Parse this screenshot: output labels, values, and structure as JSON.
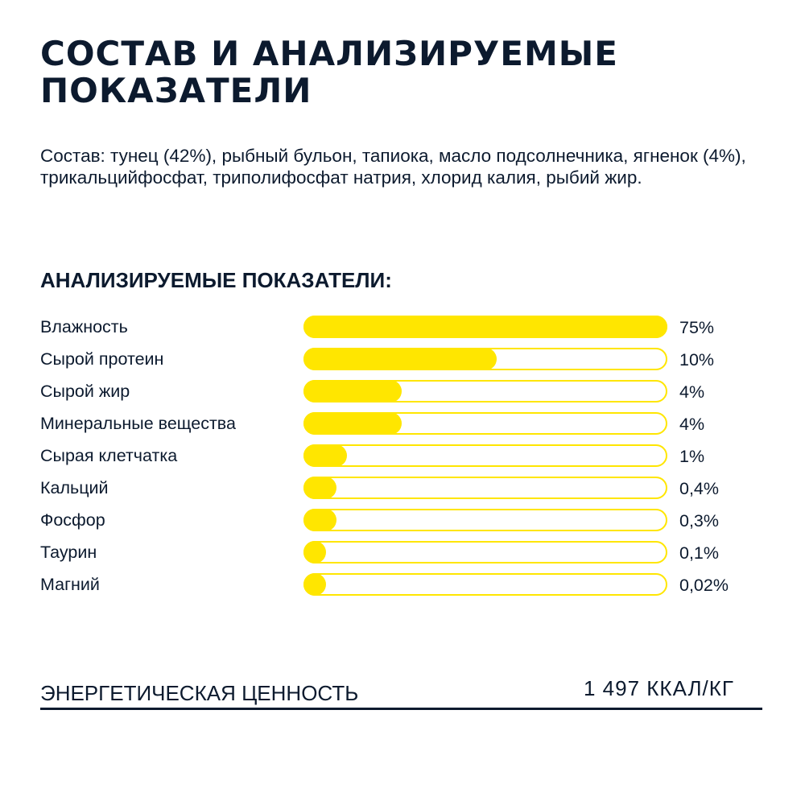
{
  "header": {
    "title_line1": "СОСТАВ И АНАЛИЗИРУЕМЫЕ",
    "title_line2": "ПОКАЗАТЕЛИ"
  },
  "composition": {
    "text": "Состав: тунец (42%), рыбный бульон, тапиока, масло подсолнечника, ягненок (4%), трикальцийфосфат, триполифосфат натрия, хлорид калия, рыбий жир."
  },
  "analysis": {
    "heading": "АНАЛИЗИРУЕМЫЕ ПОКАЗАТЕЛИ:"
  },
  "colors": {
    "bar": "#ffe600",
    "text": "#0c1a2e"
  },
  "chart_data": {
    "type": "bar",
    "orientation": "horizontal",
    "categories": [
      "Влажность",
      "Сырой протеин",
      "Сырой жир",
      "Минеральные вещества",
      "Сырая клетчатка",
      "Кальций",
      "Фосфор",
      "Таурин",
      "Магний"
    ],
    "value_labels": [
      "75%",
      "10%",
      "4%",
      "4%",
      "1%",
      "0,4%",
      "0,3%",
      "0,1%",
      "0,02%"
    ],
    "bar_fill_fractions": [
      1.0,
      0.53,
      0.27,
      0.27,
      0.12,
      0.09,
      0.09,
      0.06,
      0.06
    ]
  },
  "energy": {
    "label": "ЭНЕРГЕТИЧЕСКАЯ ЦЕННОСТЬ",
    "value": "1 497 ККАЛ/КГ"
  }
}
